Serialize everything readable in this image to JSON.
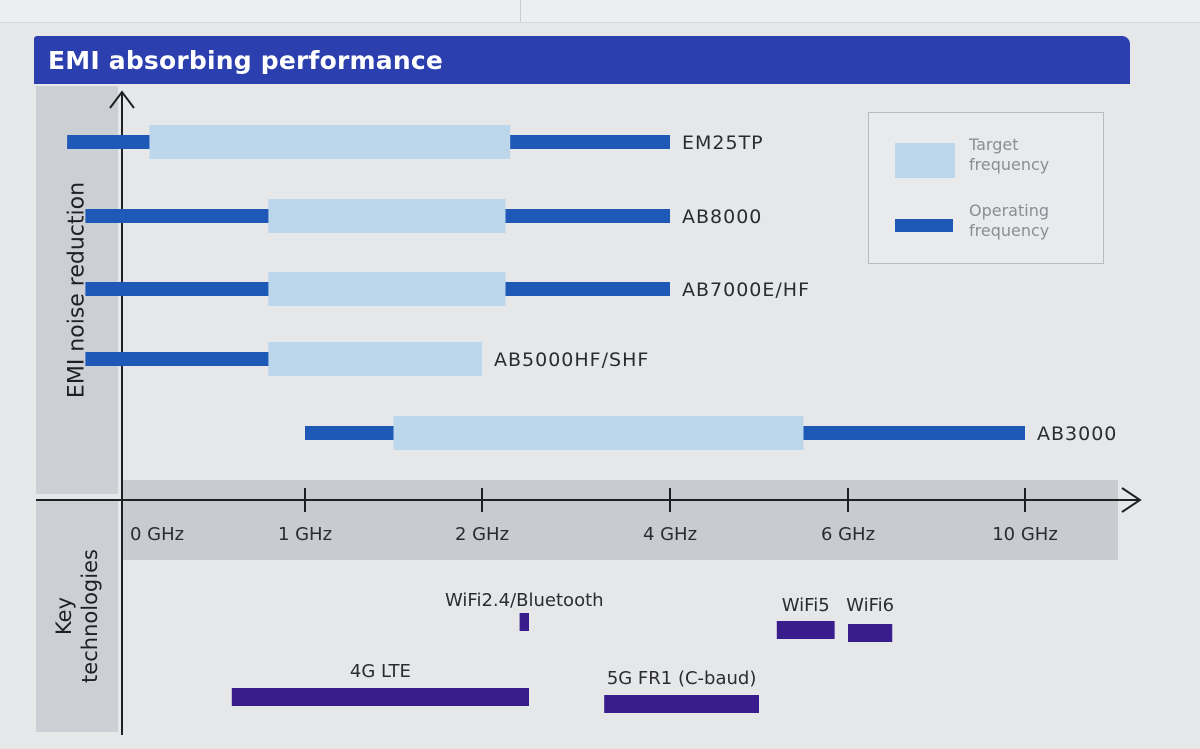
{
  "title": "EMI absorbing performance",
  "side_labels": {
    "top": "EMI noise reduction",
    "bottom_line1": "Key",
    "bottom_line2": "technologies"
  },
  "legend": {
    "target": "Target frequency",
    "operating": "Operating frequency"
  },
  "colors": {
    "title_bar": "#2b3fae",
    "target_fill": "#bcd6ec",
    "operating_fill": "#1f59b8",
    "technology_fill": "#3a1d8c"
  },
  "chart_data": {
    "type": "bar",
    "orientation": "horizontal",
    "x_axis": {
      "scale": "categorical-nonlinear",
      "ticks": [
        "0 GHz",
        "1 GHz",
        "2 GHz",
        "4 GHz",
        "6 GHz",
        "10 GHz"
      ],
      "tick_values_ghz": [
        0,
        1,
        2,
        4,
        6,
        10
      ]
    },
    "ylabel": "EMI noise reduction",
    "series": [
      {
        "name": "EM25TP",
        "operating_ghz": [
          -0.3,
          4.0
        ],
        "target_ghz": [
          0.15,
          2.3
        ]
      },
      {
        "name": "AB8000",
        "operating_ghz": [
          -0.2,
          4.0
        ],
        "target_ghz": [
          0.8,
          2.25
        ]
      },
      {
        "name": "AB7000E/HF",
        "operating_ghz": [
          -0.2,
          4.0
        ],
        "target_ghz": [
          0.8,
          2.25
        ]
      },
      {
        "name": "AB5000HF/SHF",
        "operating_ghz": [
          -0.2,
          2.0
        ],
        "target_ghz": [
          0.8,
          2.0
        ]
      },
      {
        "name": "AB3000",
        "operating_ghz": [
          1.0,
          10.0
        ],
        "target_ghz": [
          1.5,
          5.5
        ]
      }
    ],
    "technologies": [
      {
        "name": "WiFi2.4/Bluetooth",
        "range_ghz": [
          2.4,
          2.5
        ]
      },
      {
        "name": "WiFi5",
        "range_ghz": [
          5.2,
          5.85
        ]
      },
      {
        "name": "WiFi6",
        "range_ghz": [
          6.0,
          7.0
        ]
      },
      {
        "name": "4G LTE",
        "range_ghz": [
          0.6,
          2.5
        ]
      },
      {
        "name": "5G FR1 (C-baud)",
        "range_ghz": [
          3.3,
          5.0
        ]
      }
    ]
  }
}
